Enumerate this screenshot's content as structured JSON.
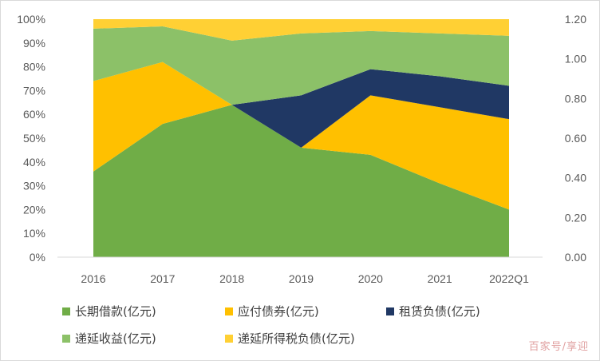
{
  "chart_data": {
    "type": "area",
    "stacked": true,
    "categories": [
      "2016",
      "2017",
      "2018",
      "2019",
      "2020",
      "2021",
      "2022Q1"
    ],
    "left_axis": {
      "ticks": [
        "0%",
        "10%",
        "20%",
        "30%",
        "40%",
        "50%",
        "60%",
        "70%",
        "80%",
        "90%",
        "100%"
      ],
      "ylim": [
        0,
        100
      ]
    },
    "right_axis": {
      "ticks": [
        "0.00",
        "0.20",
        "0.40",
        "0.60",
        "0.80",
        "1.00",
        "1.20"
      ],
      "ylim": [
        0,
        1.2
      ]
    },
    "series": [
      {
        "name": "长期借款(亿元)",
        "color": "#70ad47",
        "values": [
          36,
          56,
          64,
          46,
          43,
          31,
          20
        ]
      },
      {
        "name": "应付债券(亿元)",
        "color": "#ffc000",
        "values": [
          38,
          26,
          0,
          0,
          25,
          32,
          38
        ]
      },
      {
        "name": "租赁负债(亿元)",
        "color": "#203864",
        "values": [
          0,
          0,
          0,
          22,
          11,
          13,
          14
        ]
      },
      {
        "name": "递延收益(亿元)",
        "color": "#8cc168",
        "values": [
          22,
          15,
          27,
          26,
          16,
          18,
          21
        ]
      },
      {
        "name": "递延所得税负债(亿元)",
        "color": "#ffd034",
        "values": [
          4,
          3,
          9,
          6,
          5,
          6,
          7
        ]
      }
    ],
    "legend_position": "bottom",
    "grid": false
  },
  "watermark": "百家号/享迎"
}
